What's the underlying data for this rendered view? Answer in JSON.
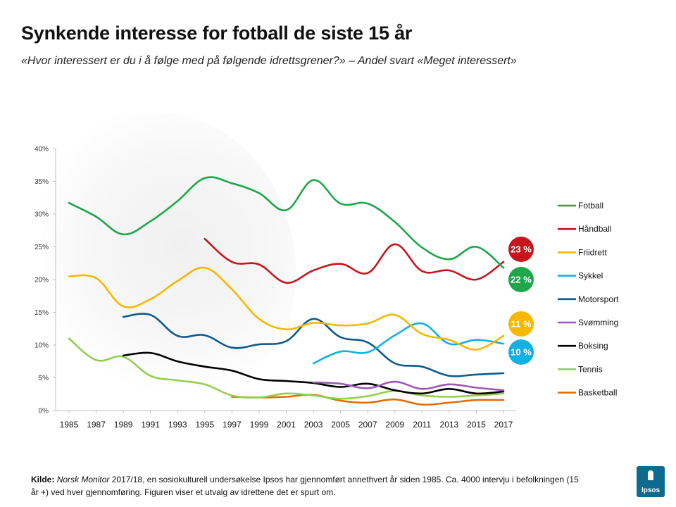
{
  "title": "Synkende interesse for fotball de siste 15 år",
  "subtitle": "«Hvor interessert er du i å følge med på følgende idrettsgrener?» – Andel svart «Meget interessert»",
  "source": {
    "label": "Kilde:",
    "publication": "Norsk Monitor",
    "text": "2017/18,  en sosiokulturell undersøkelse Ipsos har gjennomført annethvert år siden 1985. Ca. 4000  intervju i befolkningen (15 år +) ved hver gjennomføring. Figuren viser et utvalg av idrettene det er spurt om."
  },
  "logo": {
    "text": "Ipsos",
    "color": "#0e6a8e"
  },
  "chart_data": {
    "type": "line",
    "title": "Synkende interesse for fotball de siste 15 år",
    "xlabel": "",
    "ylabel": "",
    "ylim": [
      0,
      40
    ],
    "y_ticks": [
      0,
      5,
      10,
      15,
      20,
      25,
      30,
      35,
      40
    ],
    "y_tick_labels": [
      "0%",
      "5%",
      "10%",
      "15%",
      "20%",
      "25%",
      "30%",
      "35%",
      "40%"
    ],
    "x": [
      1985,
      1987,
      1989,
      1991,
      1993,
      1995,
      1997,
      1999,
      2001,
      2003,
      2005,
      2007,
      2009,
      2011,
      2013,
      2015,
      2017
    ],
    "x_labels": [
      "1985",
      "1987",
      "1989",
      "1991",
      "1993",
      "1995",
      "1997",
      "1999",
      "2001",
      "2003",
      "2005",
      "2007",
      "2009",
      "2011",
      "2013",
      "2015",
      "2017"
    ],
    "grid": false,
    "legend_position": "right",
    "series": [
      {
        "name": "Fotball",
        "color": "#1ea64a",
        "values": [
          31.7,
          29.6,
          26.9,
          28.9,
          32.0,
          35.5,
          34.7,
          33.2,
          30.6,
          35.2,
          31.6,
          31.6,
          28.8,
          24.9,
          23.1,
          25.0,
          21.8
        ]
      },
      {
        "name": "Håndball",
        "color": "#c4161c",
        "values": [
          null,
          null,
          null,
          null,
          null,
          26.2,
          22.7,
          22.3,
          19.5,
          21.4,
          22.4,
          21.0,
          25.4,
          21.3,
          21.4,
          20.0,
          22.7
        ]
      },
      {
        "name": "Friidrett",
        "color": "#f6b800",
        "values": [
          20.5,
          20.2,
          15.9,
          17.0,
          19.8,
          21.8,
          18.5,
          14.0,
          12.4,
          13.4,
          13.0,
          13.3,
          14.6,
          11.7,
          10.8,
          9.3,
          11.4
        ]
      },
      {
        "name": "Sykkel",
        "color": "#13b0e6",
        "values": [
          null,
          null,
          null,
          null,
          null,
          null,
          null,
          null,
          null,
          7.2,
          9.0,
          8.9,
          11.5,
          13.3,
          10.2,
          10.8,
          10.2
        ]
      },
      {
        "name": "Motorsport",
        "color": "#0d5a8e",
        "values": [
          null,
          null,
          14.3,
          14.6,
          11.4,
          11.5,
          9.6,
          10.1,
          10.6,
          14.0,
          11.2,
          10.4,
          7.2,
          6.7,
          5.3,
          5.5,
          5.7
        ]
      },
      {
        "name": "Svømming",
        "color": "#9b59b6",
        "values": [
          null,
          null,
          null,
          null,
          null,
          null,
          null,
          null,
          null,
          4.3,
          4.1,
          3.4,
          4.4,
          3.3,
          4.0,
          3.5,
          3.1
        ]
      },
      {
        "name": "Boksing",
        "color": "#000000",
        "values": [
          null,
          null,
          8.4,
          8.8,
          7.5,
          6.7,
          6.1,
          4.8,
          4.5,
          4.2,
          3.6,
          4.1,
          3.1,
          2.6,
          3.3,
          2.6,
          2.9
        ]
      },
      {
        "name": "Tennis",
        "color": "#92d050",
        "values": [
          11.0,
          7.7,
          8.2,
          5.3,
          4.6,
          4.0,
          2.3,
          2.0,
          2.6,
          2.3,
          1.8,
          2.2,
          3.0,
          2.3,
          2.1,
          2.3,
          2.6
        ]
      },
      {
        "name": "Basketball",
        "color": "#e36c0a",
        "values": [
          null,
          null,
          null,
          null,
          null,
          null,
          2.1,
          2.0,
          2.1,
          2.4,
          1.5,
          1.2,
          1.7,
          0.9,
          1.2,
          1.6,
          1.6
        ]
      }
    ],
    "end_badges": [
      {
        "label": "23 %",
        "series": "Håndball",
        "color": "#c4161c"
      },
      {
        "label": "22 %",
        "series": "Fotball",
        "color": "#1ea64a"
      },
      {
        "label": "11 %",
        "series": "Friidrett",
        "color": "#f6b800"
      },
      {
        "label": "10 %",
        "series": "Sykkel",
        "color": "#13b0e6"
      }
    ]
  }
}
